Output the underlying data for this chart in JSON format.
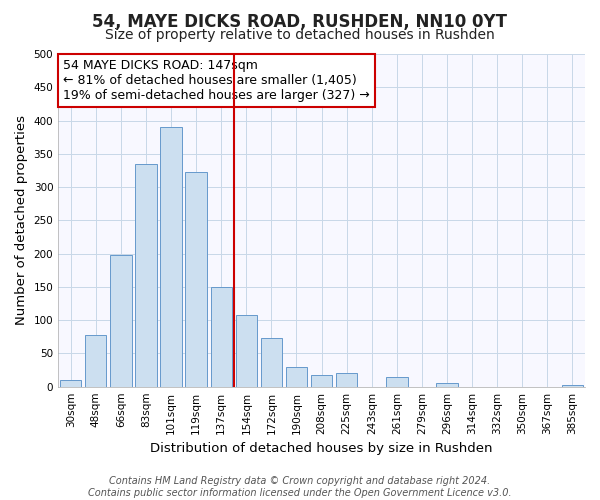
{
  "title": "54, MAYE DICKS ROAD, RUSHDEN, NN10 0YT",
  "subtitle": "Size of property relative to detached houses in Rushden",
  "xlabel": "Distribution of detached houses by size in Rushden",
  "ylabel": "Number of detached properties",
  "bar_labels": [
    "30sqm",
    "48sqm",
    "66sqm",
    "83sqm",
    "101sqm",
    "119sqm",
    "137sqm",
    "154sqm",
    "172sqm",
    "190sqm",
    "208sqm",
    "225sqm",
    "243sqm",
    "261sqm",
    "279sqm",
    "296sqm",
    "314sqm",
    "332sqm",
    "350sqm",
    "367sqm",
    "385sqm"
  ],
  "bar_values": [
    10,
    78,
    198,
    335,
    390,
    323,
    150,
    108,
    73,
    30,
    18,
    21,
    0,
    15,
    0,
    6,
    0,
    0,
    0,
    0,
    2
  ],
  "bar_color": "#ccdff0",
  "bar_edge_color": "#6699cc",
  "vertical_line_after_index": 6,
  "annotation_title": "54 MAYE DICKS ROAD: 147sqm",
  "annotation_line1": "← 81% of detached houses are smaller (1,405)",
  "annotation_line2": "19% of semi-detached houses are larger (327) →",
  "annotation_box_edge_color": "#cc0000",
  "annotation_box_face_color": "#ffffff",
  "vertical_line_color": "#cc0000",
  "ylim": [
    0,
    500
  ],
  "yticks": [
    0,
    50,
    100,
    150,
    200,
    250,
    300,
    350,
    400,
    450,
    500
  ],
  "footer_line1": "Contains HM Land Registry data © Crown copyright and database right 2024.",
  "footer_line2": "Contains public sector information licensed under the Open Government Licence v3.0.",
  "title_fontsize": 12,
  "subtitle_fontsize": 10,
  "axis_label_fontsize": 9.5,
  "tick_fontsize": 7.5,
  "annotation_fontsize": 9,
  "footer_fontsize": 7
}
